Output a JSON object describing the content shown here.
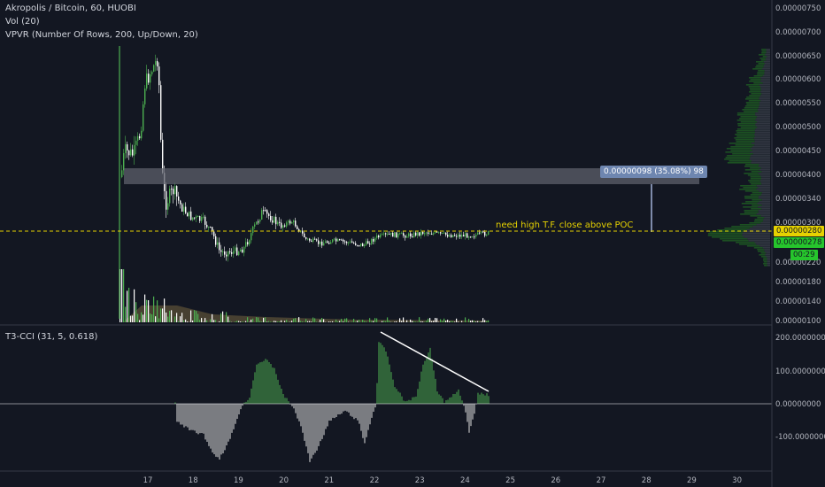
{
  "legend": {
    "symbol": "Akropolis / Bitcoin, 60, HUOBI",
    "volume": "Vol (20)",
    "vpvr": "VPVR (Number Of Rows, 200, Up/Down, 20)",
    "cci": "T3-CCI (31, 5, 0.618)"
  },
  "price_axis_labels": [
    "0.00000750",
    "0.00000700",
    "0.00000650",
    "0.00000600",
    "0.00000550",
    "0.00000500",
    "0.00000450",
    "0.00000400",
    "0.00000340",
    "0.00000300",
    "0.00000220",
    "0.00000180",
    "0.00000140",
    "0.00000100"
  ],
  "cci_axis_labels": [
    "200.00000000",
    "100.00000000",
    "0.00000000",
    "-100.00000000"
  ],
  "time_axis_labels": [
    "17",
    "18",
    "19",
    "20",
    "21",
    "22",
    "23",
    "24",
    "25",
    "26",
    "27",
    "28",
    "29",
    "30"
  ],
  "price_tags": {
    "poc": "0.00000280",
    "last": "0.00000278",
    "countdown": "00:29"
  },
  "measure_label": "0.00000098 (35.08%) 98",
  "annotation": "need high T.F. close above POC",
  "colors": {
    "background": "#131722",
    "up": "#26a69a",
    "candle_up": "#4caf50",
    "candle_down": "#ffffff",
    "poc_line": "#e6d200",
    "measure": "#7e8bab"
  },
  "chart_data": {
    "type": "line",
    "x_ticks": [
      "17",
      "18",
      "19",
      "20",
      "21",
      "22",
      "23",
      "24",
      "25",
      "26",
      "27",
      "28",
      "29",
      "30"
    ],
    "price_ticks": [
      7.5e-06,
      7e-06,
      6.5e-06,
      6e-06,
      5.5e-06,
      5e-06,
      4.5e-06,
      4e-06,
      3.4e-06,
      3e-06,
      2.2e-06,
      1.8e-06,
      1.4e-06,
      1e-06
    ],
    "cci_ticks": [
      200,
      100,
      0,
      -100
    ],
    "series": [
      {
        "values": [
          4.2e-06,
          6.3e-06,
          6.6e-06,
          3.8e-06,
          3.1e-06,
          2.5e-06,
          2.9e-06,
          3.1e-06,
          2.7e-06,
          2.6e-06,
          2.7e-06,
          2.7e-06,
          2.8e-06,
          2.8e-06,
          2.8e-06
        ]
      }
    ],
    "poc": 2.8e-06,
    "last": 2.78e-06
  }
}
